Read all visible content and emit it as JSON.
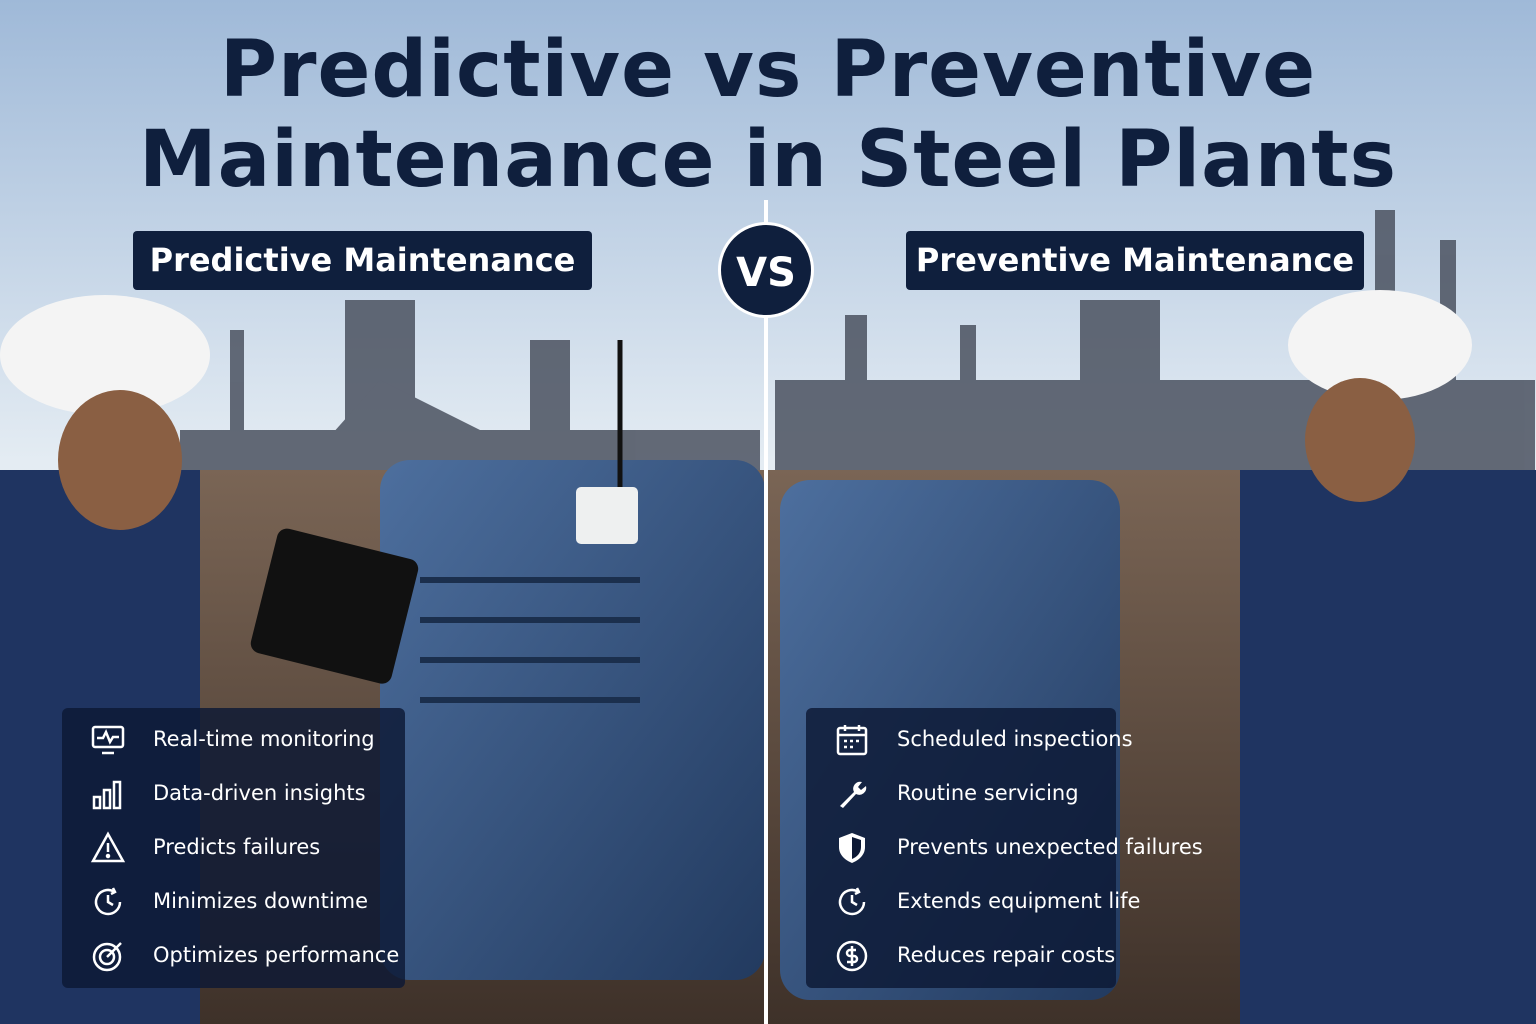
{
  "title": [
    "Predictive vs Preventive",
    "Maintenance in Steel Plants"
  ],
  "vs": "VS",
  "panels": [
    {
      "heading": "Predictive Maintenance",
      "items": [
        "Real-time monitoring",
        "Data-driven insights",
        "Predicts failures",
        "Minimizes downtime",
        "Optimizes performance"
      ]
    },
    {
      "heading": "Preventive Maintenance",
      "items": [
        "Scheduled inspections",
        "Routine servicing",
        "Prevents unexpected failures",
        "Extends equipment life",
        "Reduces repair costs"
      ]
    }
  ]
}
